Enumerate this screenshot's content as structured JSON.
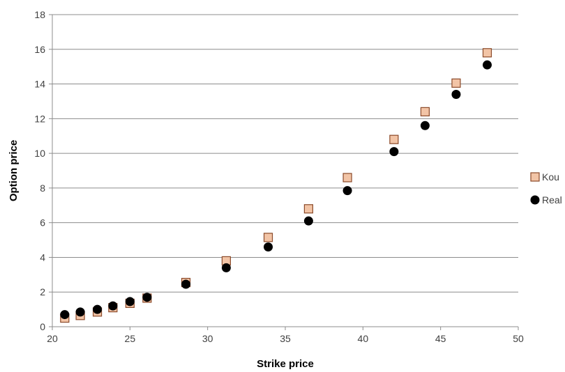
{
  "chart_data": {
    "type": "scatter",
    "title": "",
    "xlabel": "Strike price",
    "ylabel": "Option price",
    "xlim": [
      20,
      50
    ],
    "ylim": [
      0,
      18
    ],
    "xticks": [
      20,
      25,
      30,
      35,
      40,
      45,
      50
    ],
    "yticks": [
      0,
      2,
      4,
      6,
      8,
      10,
      12,
      14,
      16,
      18
    ],
    "grid": "horizontal",
    "legend_position": "right",
    "series": [
      {
        "name": "Kou",
        "marker": "square",
        "color": "#f2c4a6",
        "edge_color": "#8b4a2a",
        "x": [
          20.8,
          21.8,
          22.9,
          23.9,
          25.0,
          26.1,
          28.6,
          31.2,
          33.9,
          36.5,
          39.0,
          42.0,
          44.0,
          46.0,
          48.0
        ],
        "y": [
          0.5,
          0.65,
          0.85,
          1.1,
          1.35,
          1.65,
          2.55,
          3.8,
          5.15,
          6.8,
          8.6,
          10.8,
          12.4,
          14.05,
          15.8
        ]
      },
      {
        "name": "Real",
        "marker": "circle",
        "color": "#000000",
        "edge_color": "#000000",
        "x": [
          20.8,
          21.8,
          22.9,
          23.9,
          25.0,
          26.1,
          28.6,
          31.2,
          33.9,
          36.5,
          39.0,
          42.0,
          44.0,
          46.0,
          48.0
        ],
        "y": [
          0.7,
          0.85,
          1.0,
          1.2,
          1.45,
          1.7,
          2.45,
          3.4,
          4.6,
          6.1,
          7.85,
          10.1,
          11.6,
          13.4,
          15.1
        ]
      }
    ]
  }
}
